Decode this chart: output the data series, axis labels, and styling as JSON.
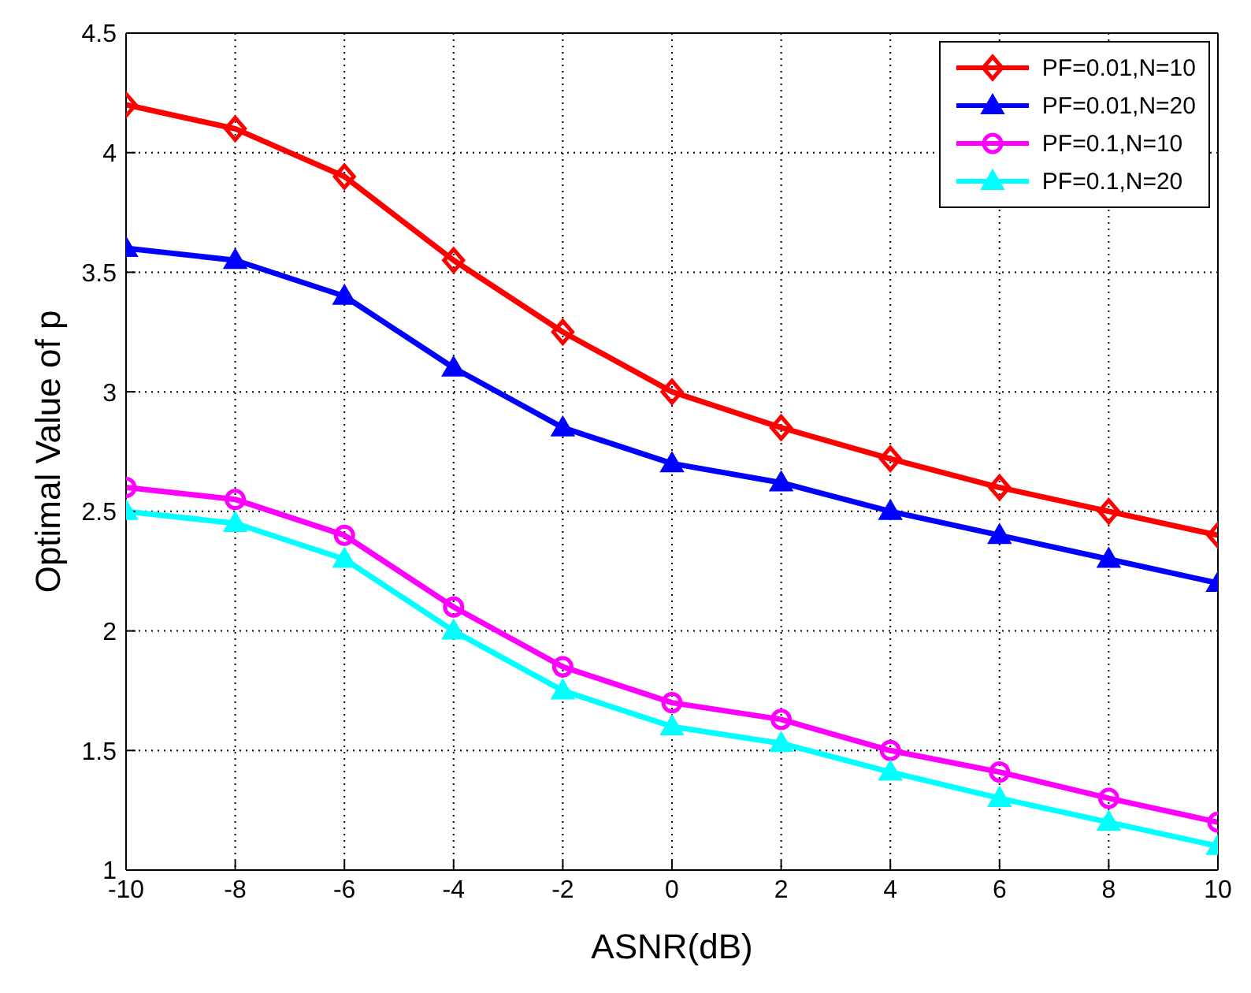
{
  "chart_data": {
    "type": "line",
    "xlabel": "ASNR(dB)",
    "ylabel": "Optimal Value of p",
    "x": [
      -10,
      -8,
      -6,
      -4,
      -2,
      0,
      2,
      4,
      6,
      8,
      10
    ],
    "xlim": [
      -10,
      10
    ],
    "xticks": [
      -10,
      -8,
      -6,
      -4,
      -2,
      0,
      2,
      4,
      6,
      8,
      10
    ],
    "ylim": [
      1,
      4.5
    ],
    "yticks": [
      1,
      1.5,
      2,
      2.5,
      3,
      3.5,
      4,
      4.5
    ],
    "grid": true,
    "legend": "top right",
    "line_style": "solid",
    "series": [
      {
        "name": "PF=0.01,N=10",
        "color": "#ff0000",
        "marker": "diamond",
        "values": [
          4.2,
          4.1,
          3.9,
          3.55,
          3.25,
          3.0,
          2.85,
          2.72,
          2.6,
          2.5,
          2.4
        ]
      },
      {
        "name": "PF=0.01,N=20",
        "color": "#0000ff",
        "marker": "triangle",
        "values": [
          3.6,
          3.55,
          3.4,
          3.1,
          2.85,
          2.7,
          2.62,
          2.5,
          2.4,
          2.3,
          2.2
        ]
      },
      {
        "name": "PF=0.1,N=10",
        "color": "#ff00ff",
        "marker": "circle",
        "values": [
          2.6,
          2.55,
          2.4,
          2.1,
          1.85,
          1.7,
          1.63,
          1.5,
          1.41,
          1.3,
          1.2
        ]
      },
      {
        "name": "PF=0.1,N=20",
        "color": "#00ffff",
        "marker": "triangle",
        "values": [
          2.5,
          2.45,
          2.3,
          2.0,
          1.75,
          1.6,
          1.53,
          1.41,
          1.3,
          1.2,
          1.1
        ]
      }
    ]
  }
}
